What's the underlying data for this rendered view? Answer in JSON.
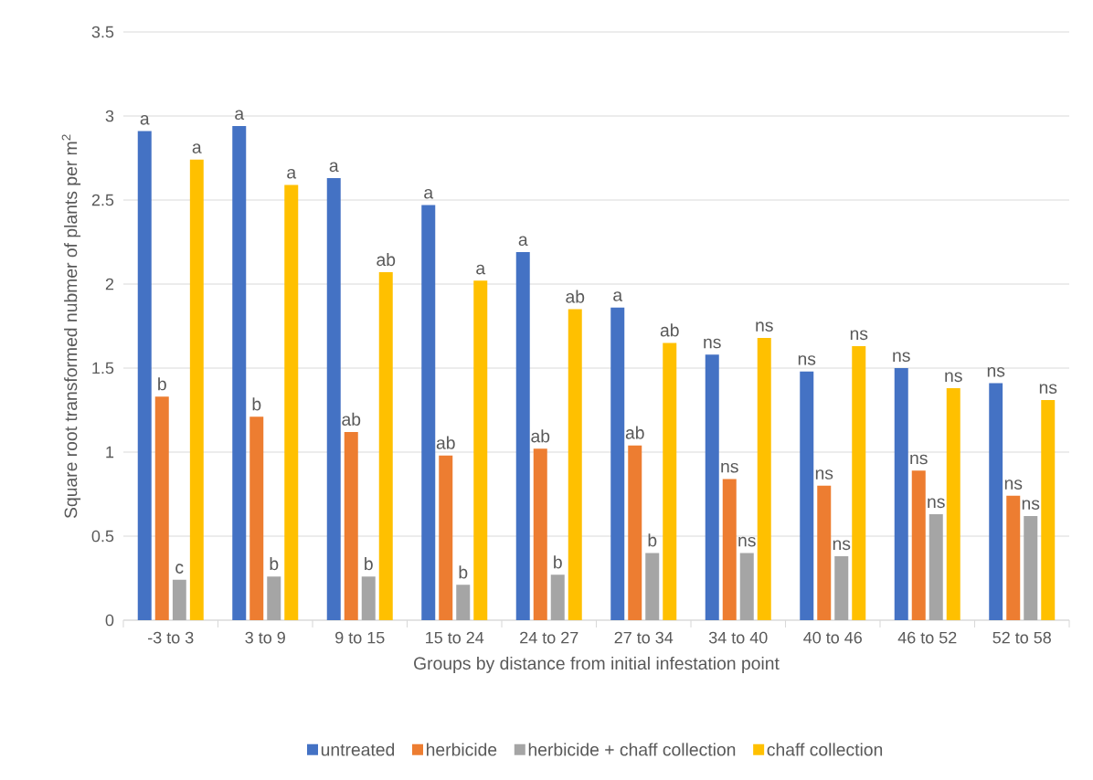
{
  "chart_data": {
    "type": "bar",
    "xlabel": "Groups by distance from initial infestation point",
    "ylabel": "Square root transformed nubmer of plants per m$^{2}$",
    "categories": [
      "-3 to 3",
      "3 to 9",
      "9 to 15",
      "15 to 24",
      "24 to 27",
      "27 to 34",
      "34 to 40",
      "40 to 46",
      "46 to 52",
      "52 to 58"
    ],
    "series": [
      {
        "name": "untreated",
        "color": "#4472c4",
        "values": [
          2.91,
          2.94,
          2.63,
          2.47,
          2.19,
          1.86,
          1.58,
          1.48,
          1.5,
          1.41
        ],
        "value_labels": [
          "a",
          "a",
          "a",
          "a",
          "a",
          "a",
          "ns",
          "ns",
          "ns",
          "ns"
        ]
      },
      {
        "name": "herbicide",
        "color": "#ed7d31",
        "values": [
          1.33,
          1.21,
          1.12,
          0.98,
          1.02,
          1.04,
          0.84,
          0.8,
          0.89,
          0.74
        ],
        "value_labels": [
          "b",
          "b",
          "ab",
          "ab",
          "ab",
          "ab",
          "ns",
          "ns",
          "ns",
          "ns"
        ]
      },
      {
        "name": "herbicide + chaff collection",
        "color": "#a5a5a5",
        "values": [
          0.24,
          0.26,
          0.26,
          0.21,
          0.27,
          0.4,
          0.4,
          0.38,
          0.63,
          0.62
        ],
        "value_labels": [
          "c",
          "b",
          "b",
          "b",
          "b",
          "b",
          "ns",
          "ns",
          "ns",
          "ns"
        ]
      },
      {
        "name": "chaff collection",
        "color": "#ffc000",
        "values": [
          2.74,
          2.59,
          2.07,
          2.02,
          1.85,
          1.65,
          1.68,
          1.63,
          1.38,
          1.31
        ],
        "value_labels": [
          "a",
          "a",
          "ab",
          "a",
          "ab",
          "ab",
          "ns",
          "ns",
          "ns",
          "ns"
        ]
      }
    ],
    "ylim": [
      0,
      3.5
    ],
    "yticks": [
      0,
      0.5,
      1,
      1.5,
      2,
      2.5,
      3,
      3.5
    ],
    "grid": "y",
    "legend": "bottom"
  }
}
